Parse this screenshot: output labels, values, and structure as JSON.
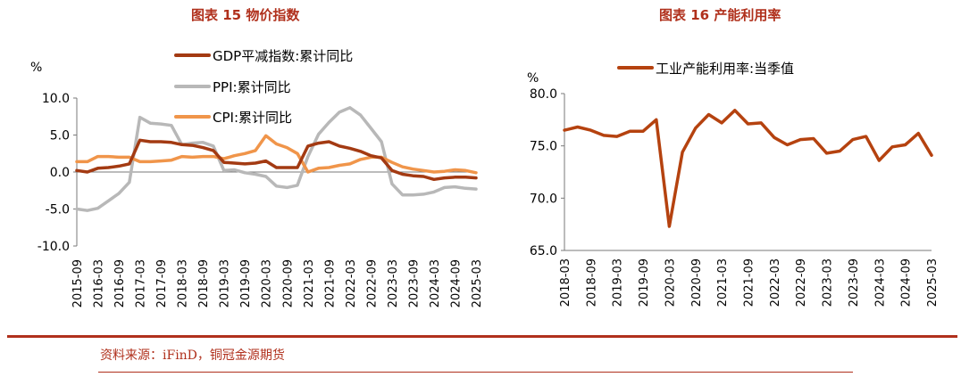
{
  "colors": {
    "accent": "#b0301c",
    "gdp": "#a33a12",
    "ppi": "#b8b8b8",
    "cpi": "#f0954a",
    "util": "#b5420f"
  },
  "footer": {
    "source": "资料来源：iFinD，铜冠金源期货"
  },
  "chart_data": [
    {
      "type": "line",
      "title": "图表 15  物价指数",
      "ylabel": "%",
      "ylim": [
        -10,
        10
      ],
      "yticks": [
        "10.0",
        "5.0",
        "0.0",
        "-5.0",
        "-10.0"
      ],
      "xrange": [
        "2015-09",
        "2025-03"
      ],
      "xticks": [
        "2015-09",
        "2016-03",
        "2016-09",
        "2017-03",
        "2017-09",
        "2018-03",
        "2018-09",
        "2019-03",
        "2019-09",
        "2020-03",
        "2020-09",
        "2021-03",
        "2021-09",
        "2022-03",
        "2022-09",
        "2023-03",
        "2023-09",
        "2024-03",
        "2024-09",
        "2025-03"
      ],
      "legend_position": "top",
      "series": [
        {
          "name": "GDP平减指数:累计同比",
          "points": [
            [
              "2015-09",
              0.2
            ],
            [
              "2015-12",
              0.0
            ],
            [
              "2016-03",
              0.5
            ],
            [
              "2016-06",
              0.6
            ],
            [
              "2016-09",
              0.8
            ],
            [
              "2016-12",
              1.1
            ],
            [
              "2017-03",
              4.3
            ],
            [
              "2017-06",
              4.1
            ],
            [
              "2017-09",
              4.1
            ],
            [
              "2017-12",
              4.0
            ],
            [
              "2018-03",
              3.7
            ],
            [
              "2018-06",
              3.6
            ],
            [
              "2018-09",
              3.3
            ],
            [
              "2018-12",
              2.9
            ],
            [
              "2019-03",
              1.3
            ],
            [
              "2019-06",
              1.2
            ],
            [
              "2019-09",
              1.1
            ],
            [
              "2019-12",
              1.2
            ],
            [
              "2020-03",
              1.5
            ],
            [
              "2020-06",
              0.6
            ],
            [
              "2020-09",
              0.6
            ],
            [
              "2020-12",
              0.6
            ],
            [
              "2021-03",
              3.5
            ],
            [
              "2021-06",
              3.9
            ],
            [
              "2021-09",
              4.1
            ],
            [
              "2021-12",
              3.5
            ],
            [
              "2022-03",
              3.2
            ],
            [
              "2022-06",
              2.8
            ],
            [
              "2022-09",
              2.2
            ],
            [
              "2022-12",
              1.9
            ],
            [
              "2023-03",
              0.2
            ],
            [
              "2023-06",
              -0.3
            ],
            [
              "2023-09",
              -0.5
            ],
            [
              "2023-12",
              -0.6
            ],
            [
              "2024-03",
              -1.0
            ],
            [
              "2024-06",
              -0.8
            ],
            [
              "2024-09",
              -0.7
            ],
            [
              "2024-12",
              -0.7
            ],
            [
              "2025-03",
              -0.8
            ]
          ]
        },
        {
          "name": "PPI:累计同比",
          "points": [
            [
              "2015-09",
              -5.0
            ],
            [
              "2015-12",
              -5.2
            ],
            [
              "2016-03",
              -4.9
            ],
            [
              "2016-06",
              -3.9
            ],
            [
              "2016-09",
              -2.9
            ],
            [
              "2016-12",
              -1.4
            ],
            [
              "2017-03",
              7.4
            ],
            [
              "2017-06",
              6.6
            ],
            [
              "2017-09",
              6.5
            ],
            [
              "2017-12",
              6.3
            ],
            [
              "2018-03",
              3.7
            ],
            [
              "2018-06",
              3.9
            ],
            [
              "2018-09",
              4.0
            ],
            [
              "2018-12",
              3.5
            ],
            [
              "2019-03",
              0.2
            ],
            [
              "2019-06",
              0.3
            ],
            [
              "2019-09",
              -0.1
            ],
            [
              "2019-12",
              -0.3
            ],
            [
              "2020-03",
              -0.6
            ],
            [
              "2020-06",
              -1.9
            ],
            [
              "2020-09",
              -2.1
            ],
            [
              "2020-12",
              -1.8
            ],
            [
              "2021-03",
              2.1
            ],
            [
              "2021-06",
              5.1
            ],
            [
              "2021-09",
              6.7
            ],
            [
              "2021-12",
              8.1
            ],
            [
              "2022-03",
              8.7
            ],
            [
              "2022-06",
              7.7
            ],
            [
              "2022-09",
              5.9
            ],
            [
              "2022-12",
              4.1
            ],
            [
              "2023-03",
              -1.6
            ],
            [
              "2023-06",
              -3.1
            ],
            [
              "2023-09",
              -3.1
            ],
            [
              "2023-12",
              -3.0
            ],
            [
              "2024-03",
              -2.7
            ],
            [
              "2024-06",
              -2.1
            ],
            [
              "2024-09",
              -2.0
            ],
            [
              "2024-12",
              -2.2
            ],
            [
              "2025-03",
              -2.3
            ]
          ]
        },
        {
          "name": "CPI:累计同比",
          "points": [
            [
              "2015-09",
              1.4
            ],
            [
              "2015-12",
              1.4
            ],
            [
              "2016-03",
              2.1
            ],
            [
              "2016-06",
              2.1
            ],
            [
              "2016-09",
              2.0
            ],
            [
              "2016-12",
              2.0
            ],
            [
              "2017-03",
              1.4
            ],
            [
              "2017-06",
              1.4
            ],
            [
              "2017-09",
              1.5
            ],
            [
              "2017-12",
              1.6
            ],
            [
              "2018-03",
              2.1
            ],
            [
              "2018-06",
              2.0
            ],
            [
              "2018-09",
              2.1
            ],
            [
              "2018-12",
              2.1
            ],
            [
              "2019-03",
              1.8
            ],
            [
              "2019-06",
              2.2
            ],
            [
              "2019-09",
              2.5
            ],
            [
              "2019-12",
              2.9
            ],
            [
              "2020-03",
              4.9
            ],
            [
              "2020-06",
              3.8
            ],
            [
              "2020-09",
              3.3
            ],
            [
              "2020-12",
              2.5
            ],
            [
              "2021-03",
              0.0
            ],
            [
              "2021-06",
              0.5
            ],
            [
              "2021-09",
              0.6
            ],
            [
              "2021-12",
              0.9
            ],
            [
              "2022-03",
              1.1
            ],
            [
              "2022-06",
              1.7
            ],
            [
              "2022-09",
              2.0
            ],
            [
              "2022-12",
              2.0
            ],
            [
              "2023-03",
              1.3
            ],
            [
              "2023-06",
              0.7
            ],
            [
              "2023-09",
              0.4
            ],
            [
              "2023-12",
              0.2
            ],
            [
              "2024-03",
              0.0
            ],
            [
              "2024-06",
              0.1
            ],
            [
              "2024-09",
              0.3
            ],
            [
              "2024-12",
              0.2
            ],
            [
              "2025-03",
              -0.1
            ]
          ]
        }
      ]
    },
    {
      "type": "line",
      "title": "图表 16  产能利用率",
      "ylabel": "%",
      "ylim": [
        65,
        80
      ],
      "yticks": [
        "80.0",
        "75.0",
        "70.0",
        "65.0"
      ],
      "xrange": [
        "2018-03",
        "2025-03"
      ],
      "xticks": [
        "2018-03",
        "2018-09",
        "2019-03",
        "2019-09",
        "2020-03",
        "2020-09",
        "2021-03",
        "2021-09",
        "2022-03",
        "2022-09",
        "2023-03",
        "2023-09",
        "2024-03",
        "2024-09",
        "2025-03"
      ],
      "legend_position": "top",
      "series": [
        {
          "name": "工业产能利用率:当季值",
          "points": [
            [
              "2018-03",
              76.5
            ],
            [
              "2018-06",
              76.8
            ],
            [
              "2018-09",
              76.5
            ],
            [
              "2018-12",
              76.0
            ],
            [
              "2019-03",
              75.9
            ],
            [
              "2019-06",
              76.4
            ],
            [
              "2019-09",
              76.4
            ],
            [
              "2019-12",
              77.5
            ],
            [
              "2020-03",
              67.3
            ],
            [
              "2020-06",
              74.4
            ],
            [
              "2020-09",
              76.7
            ],
            [
              "2020-12",
              78.0
            ],
            [
              "2021-03",
              77.2
            ],
            [
              "2021-06",
              78.4
            ],
            [
              "2021-09",
              77.1
            ],
            [
              "2021-12",
              77.2
            ],
            [
              "2022-03",
              75.8
            ],
            [
              "2022-06",
              75.1
            ],
            [
              "2022-09",
              75.6
            ],
            [
              "2022-12",
              75.7
            ],
            [
              "2023-03",
              74.3
            ],
            [
              "2023-06",
              74.5
            ],
            [
              "2023-09",
              75.6
            ],
            [
              "2023-12",
              75.9
            ],
            [
              "2024-03",
              73.6
            ],
            [
              "2024-06",
              74.9
            ],
            [
              "2024-09",
              75.1
            ],
            [
              "2024-12",
              76.2
            ],
            [
              "2025-03",
              74.1
            ]
          ]
        }
      ]
    }
  ]
}
